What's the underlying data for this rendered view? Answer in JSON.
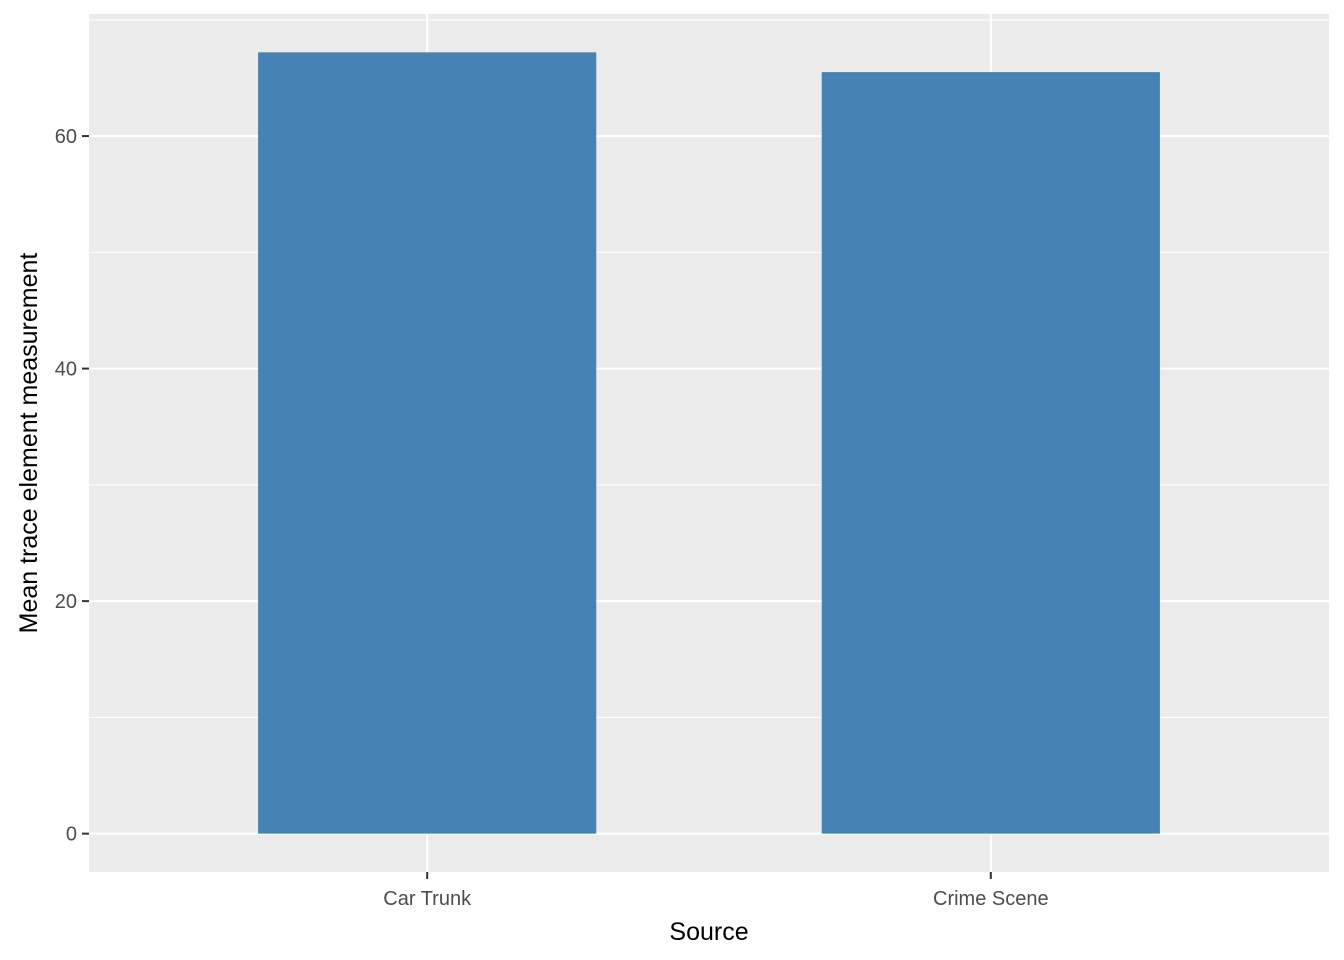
{
  "chart_data": {
    "type": "bar",
    "categories": [
      "Car Trunk",
      "Crime Scene"
    ],
    "values": [
      67.2,
      65.5
    ],
    "title": "",
    "xlabel": "Source",
    "ylabel": "Mean trace element measurement",
    "ylim": [
      -3.3,
      70.5
    ],
    "yticks": [
      0,
      20,
      40,
      60
    ],
    "ytick_labels": [
      "0",
      "20",
      "40",
      "60"
    ],
    "grid": true,
    "colors": {
      "bar": "#4682b4",
      "panel": "#ebebeb",
      "grid": "#ffffff",
      "tick": "#333333"
    }
  }
}
